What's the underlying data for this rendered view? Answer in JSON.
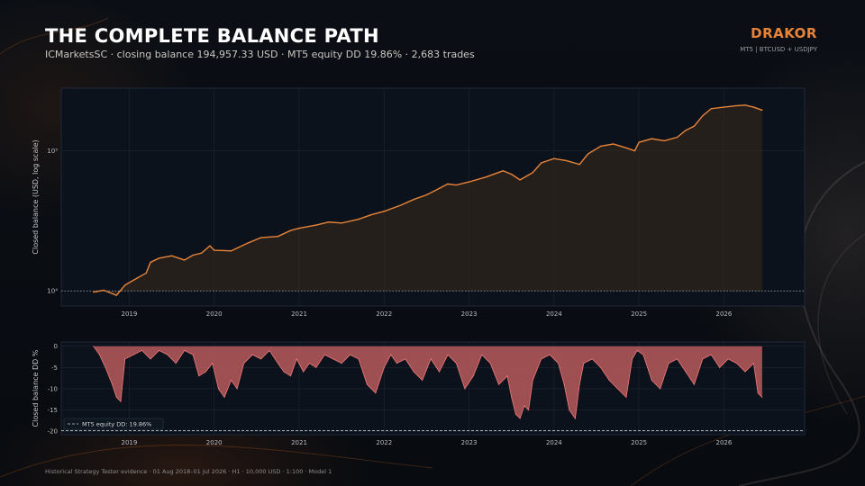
{
  "header": {
    "title": "THE COMPLETE BALANCE PATH",
    "subtitle": "ICMarketsSC · closing balance 194,957.33 USD · MT5 equity DD 19.86% · 2,683 trades",
    "brand": "DRAKOR",
    "brand_sub": "MT5  |  BTCUSD + USDJPY"
  },
  "footer": {
    "note": "Historical Strategy Tester evidence · 01 Aug 2018–01 Jul 2026 · H1 · 10,000 USD · 1:100 · Model 1"
  },
  "colors": {
    "balance_line": "#e8843a",
    "balance_fill": "#3a2a1c",
    "dd_fill": "#b85a5a",
    "dd_line": "#f07a7a",
    "reference_line": "#c8c8c8",
    "panel_bg": "#0c121b",
    "grid": "#1c2633"
  },
  "chart_data": [
    {
      "type": "line",
      "title": "",
      "xlabel": "",
      "ylabel": "Closed balance (USD, log scale)",
      "yscale": "log",
      "xlim": [
        2018.2,
        2026.95
      ],
      "ylim": [
        7800,
        280000
      ],
      "x_ticks": [
        "2019",
        "2020",
        "2021",
        "2022",
        "2023",
        "2024",
        "2025",
        "2026"
      ],
      "y_ticks": [
        {
          "value": 10000,
          "label": "10⁴"
        },
        {
          "value": 100000,
          "label": "10⁵"
        }
      ],
      "grid": true,
      "reference_line": {
        "y": 10000,
        "style": "dotted"
      },
      "series": [
        {
          "x": [
            2018.58,
            2018.7,
            2018.85,
            2018.95,
            2019.1,
            2019.2,
            2019.25,
            2019.35,
            2019.5,
            2019.65,
            2019.75,
            2019.85,
            2019.95,
            2020.0,
            2020.2,
            2020.4,
            2020.55,
            2020.75,
            2020.9,
            2021.0,
            2021.2,
            2021.35,
            2021.5,
            2021.7,
            2021.85,
            2022.0,
            2022.2,
            2022.35,
            2022.5,
            2022.6,
            2022.75,
            2022.85,
            2023.0,
            2023.2,
            2023.4,
            2023.5,
            2023.6,
            2023.75,
            2023.85,
            2024.0,
            2024.15,
            2024.3,
            2024.4,
            2024.55,
            2024.7,
            2024.85,
            2024.95,
            2025.0,
            2025.15,
            2025.3,
            2025.45,
            2025.55,
            2025.65,
            2025.75,
            2025.85,
            2026.0,
            2026.15,
            2026.25,
            2026.35,
            2026.45
          ],
          "values": [
            9800,
            10100,
            9300,
            11000,
            12400,
            13400,
            16000,
            17100,
            17800,
            16600,
            18000,
            18600,
            21000,
            19500,
            19300,
            22000,
            24000,
            24500,
            27000,
            28000,
            29500,
            31000,
            30500,
            32500,
            35000,
            37000,
            41000,
            45000,
            48500,
            52000,
            58000,
            57000,
            60000,
            65000,
            72000,
            68000,
            62000,
            70000,
            82000,
            88000,
            85000,
            80000,
            95000,
            108000,
            112000,
            105000,
            100000,
            115000,
            122000,
            118000,
            125000,
            140000,
            150000,
            178000,
            200000,
            205000,
            210000,
            212000,
            205000,
            195000
          ]
        }
      ]
    },
    {
      "type": "area",
      "title": "",
      "xlabel": "",
      "ylabel": "Closed balance DD %",
      "xlim": [
        2018.2,
        2026.95
      ],
      "ylim": [
        -20.8,
        1.0
      ],
      "x_ticks": [
        "2019",
        "2020",
        "2021",
        "2022",
        "2023",
        "2024",
        "2025",
        "2026"
      ],
      "y_ticks": [
        0,
        -5,
        -10,
        -15,
        -20
      ],
      "grid": true,
      "reference_line": {
        "y": -19.86,
        "label": "MT5 equity DD: 19.86%",
        "style": "dashed"
      },
      "legend": "bottom-left",
      "series": [
        {
          "x": [
            2018.58,
            2018.65,
            2018.72,
            2018.8,
            2018.85,
            2018.9,
            2018.95,
            2019.05,
            2019.15,
            2019.25,
            2019.35,
            2019.45,
            2019.55,
            2019.65,
            2019.75,
            2019.82,
            2019.9,
            2019.98,
            2020.05,
            2020.12,
            2020.2,
            2020.27,
            2020.35,
            2020.45,
            2020.55,
            2020.65,
            2020.75,
            2020.82,
            2020.9,
            2020.97,
            2021.05,
            2021.12,
            2021.2,
            2021.3,
            2021.4,
            2021.5,
            2021.6,
            2021.7,
            2021.8,
            2021.9,
            2022.0,
            2022.08,
            2022.15,
            2022.25,
            2022.35,
            2022.45,
            2022.55,
            2022.65,
            2022.75,
            2022.85,
            2022.95,
            2023.05,
            2023.15,
            2023.25,
            2023.35,
            2023.45,
            2023.5,
            2023.55,
            2023.6,
            2023.65,
            2023.7,
            2023.75,
            2023.85,
            2023.95,
            2024.05,
            2024.12,
            2024.18,
            2024.25,
            2024.3,
            2024.35,
            2024.45,
            2024.55,
            2024.65,
            2024.75,
            2024.85,
            2024.92,
            2024.98,
            2025.05,
            2025.15,
            2025.25,
            2025.35,
            2025.45,
            2025.55,
            2025.65,
            2025.75,
            2025.85,
            2025.95,
            2026.05,
            2026.15,
            2026.25,
            2026.35,
            2026.4,
            2026.45
          ],
          "values": [
            0,
            -2,
            -5,
            -9,
            -12,
            -13,
            -3,
            -2,
            -1,
            -3,
            -1,
            -2,
            -4,
            -1,
            -2,
            -7,
            -6,
            -4,
            -10,
            -12,
            -8,
            -10,
            -4,
            -2,
            -3,
            -1,
            -4,
            -6,
            -7,
            -3,
            -6,
            -4,
            -5,
            -2,
            -3,
            -4,
            -2,
            -3,
            -9,
            -11,
            -5,
            -2,
            -4,
            -3,
            -6,
            -8,
            -3,
            -6,
            -2,
            -4,
            -10,
            -7,
            -2,
            -4,
            -9,
            -7,
            -12,
            -16,
            -17,
            -14,
            -15,
            -8,
            -3,
            -2,
            -4,
            -9,
            -15,
            -17,
            -9,
            -4,
            -3,
            -5,
            -8,
            -10,
            -12,
            -3,
            -1,
            -2,
            -8,
            -10,
            -4,
            -3,
            -6,
            -9,
            -3,
            -2,
            -5,
            -3,
            -4,
            -6,
            -4,
            -11,
            -12
          ]
        }
      ]
    }
  ]
}
